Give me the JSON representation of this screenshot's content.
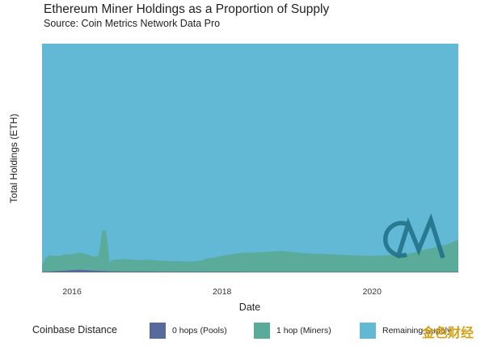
{
  "chart_data": {
    "type": "area",
    "title": "Ethereum Miner Holdings as a Proportion of Supply",
    "subtitle": "Source: Coin Metrics Network Data Pro",
    "xlabel": "Date",
    "ylabel": "Total Holdings (ETH)",
    "xlim": [
      2015.6,
      2021.15
    ],
    "ylim": [
      0,
      1
    ],
    "x_ticks": [
      "2016",
      "2018",
      "2020"
    ],
    "x_tick_values": [
      2016,
      2018,
      2020
    ],
    "stacked": true,
    "legend_title": "Coinbase Distance",
    "legend_position": "bottom",
    "x": [
      2015.6,
      2015.65,
      2015.7,
      2015.8,
      2015.9,
      2016.0,
      2016.1,
      2016.2,
      2016.3,
      2016.35,
      2016.38,
      2016.4,
      2016.42,
      2016.45,
      2016.48,
      2016.5,
      2016.55,
      2016.6,
      2016.7,
      2016.8,
      2016.9,
      2017.0,
      2017.2,
      2017.4,
      2017.6,
      2017.7,
      2017.8,
      2017.9,
      2018.0,
      2018.1,
      2018.2,
      2018.3,
      2018.4,
      2018.6,
      2018.8,
      2019.0,
      2019.2,
      2019.4,
      2019.6,
      2019.8,
      2020.0,
      2020.2,
      2020.4,
      2020.5,
      2020.6,
      2020.7,
      2020.8,
      2020.9,
      2021.0,
      2021.1,
      2021.15
    ],
    "series": [
      {
        "name": "0 hops (Pools)",
        "color": "#566a9e",
        "values": [
          0.002,
          0.003,
          0.004,
          0.006,
          0.008,
          0.01,
          0.012,
          0.01,
          0.008,
          0.007,
          0.007,
          0.006,
          0.006,
          0.006,
          0.005,
          0.005,
          0.005,
          0.005,
          0.004,
          0.004,
          0.004,
          0.004,
          0.003,
          0.003,
          0.003,
          0.003,
          0.003,
          0.003,
          0.003,
          0.003,
          0.003,
          0.002,
          0.002,
          0.002,
          0.002,
          0.002,
          0.002,
          0.002,
          0.002,
          0.002,
          0.002,
          0.002,
          0.002,
          0.002,
          0.002,
          0.002,
          0.002,
          0.002,
          0.002,
          0.002,
          0.002
        ]
      },
      {
        "name": "1 hop (Miners)",
        "color": "#5aab9a",
        "values": [
          0.03,
          0.06,
          0.072,
          0.065,
          0.07,
          0.07,
          0.075,
          0.07,
          0.06,
          0.065,
          0.12,
          0.175,
          0.18,
          0.175,
          0.11,
          0.04,
          0.05,
          0.052,
          0.055,
          0.052,
          0.05,
          0.052,
          0.048,
          0.046,
          0.045,
          0.048,
          0.058,
          0.062,
          0.07,
          0.075,
          0.08,
          0.085,
          0.084,
          0.088,
          0.092,
          0.085,
          0.08,
          0.078,
          0.075,
          0.072,
          0.07,
          0.073,
          0.078,
          0.08,
          0.09,
          0.098,
          0.105,
          0.113,
          0.12,
          0.135,
          0.14
        ]
      },
      {
        "name": "Remaining Supply",
        "color": "#62b9d5",
        "values": "remainder"
      }
    ]
  },
  "watermark": {
    "logo_letters": "CM",
    "caption": "金色财经"
  }
}
